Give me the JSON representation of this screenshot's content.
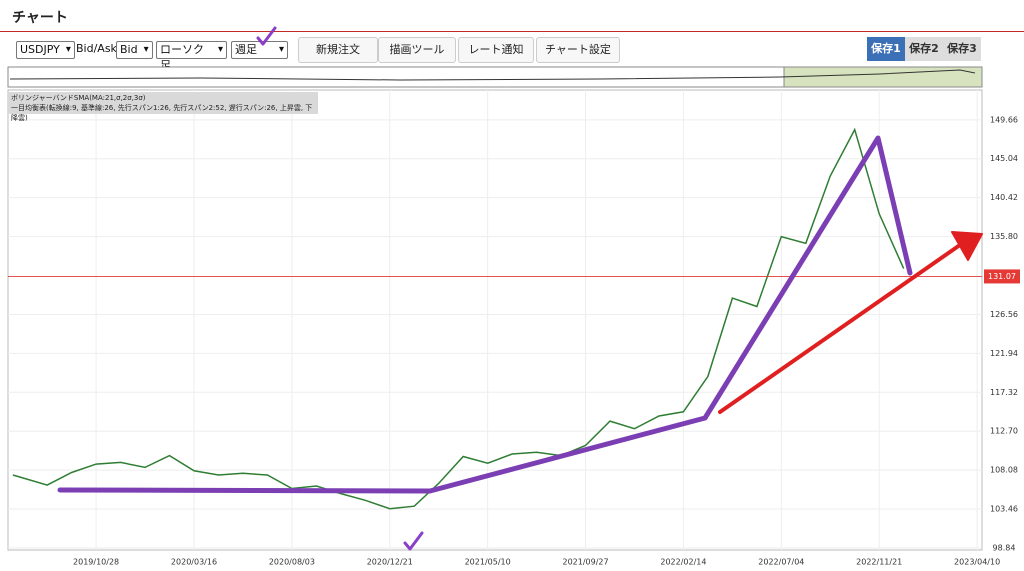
{
  "header": {
    "title": "チャート"
  },
  "toolbar": {
    "symbol": "USDJPY",
    "bid_ask_label": "Bid/Ask",
    "bid_ask": "Bid",
    "chart_style": "ローソク足",
    "period": "週足",
    "buttons": [
      "新規注文",
      "描画ツール",
      "レート通知",
      "チャート設定"
    ],
    "save_tabs": [
      "保存1",
      "保存2",
      "保存3"
    ]
  },
  "indicators": [
    "ボリンジャーバンドSMA(MA:21,σ,2σ,3σ)",
    "一目均衡表(転換線:9, 基準線:26, 先行スパン1:26, 先行スパン2:52, 遅行スパン:26, 上昇雲, 下降雲)"
  ],
  "chart_data": {
    "type": "line",
    "x": [
      "2019/07/01",
      "2019/08/19",
      "2019/09/23",
      "2019/10/28",
      "2019/12/02",
      "2020/01/06",
      "2020/02/10",
      "2020/03/16",
      "2020/04/20",
      "2020/05/25",
      "2020/06/29",
      "2020/08/03",
      "2020/09/07",
      "2020/10/12",
      "2020/11/16",
      "2020/12/21",
      "2021/01/25",
      "2021/03/01",
      "2021/04/05",
      "2021/05/10",
      "2021/06/14",
      "2021/07/19",
      "2021/08/23",
      "2021/09/27",
      "2021/11/01",
      "2021/12/06",
      "2022/01/10",
      "2022/02/14",
      "2022/03/21",
      "2022/04/25",
      "2022/05/30",
      "2022/07/04",
      "2022/08/08",
      "2022/09/12",
      "2022/10/17",
      "2022/11/21",
      "2022/12/26"
    ],
    "series": [
      {
        "color": "#2e7d32",
        "values": [
          107.5,
          106.3,
          107.8,
          108.8,
          109.0,
          108.4,
          109.8,
          108.0,
          107.5,
          107.7,
          107.5,
          105.9,
          106.2,
          105.3,
          104.5,
          103.5,
          103.8,
          106.5,
          109.7,
          108.9,
          110.0,
          110.2,
          109.8,
          111.0,
          113.9,
          113.0,
          114.5,
          115.0,
          119.2,
          128.5,
          127.5,
          135.8,
          135.0,
          143.0,
          148.5,
          138.5,
          132.0
        ]
      }
    ],
    "xlim": [
      "2019/06/24",
      "2023/04/17"
    ],
    "xticks": [
      "2019/10/28",
      "2020/03/16",
      "2020/08/03",
      "2020/12/21",
      "2021/05/10",
      "2021/09/27",
      "2022/02/14",
      "2022/07/04",
      "2022/11/21",
      "2023/04/10"
    ],
    "ylim": [
      98.6,
      153.2
    ],
    "yticks": [
      98.84,
      103.46,
      108.08,
      {
        "value": 112.7,
        "label": "112.70"
      },
      117.32,
      121.94,
      126.56,
      {
        "value": 135.8,
        "label": "135.80"
      },
      140.42,
      145.04,
      149.66
    ],
    "last_price": 131.07,
    "last_price_color": "#e53935",
    "grid": true
  }
}
